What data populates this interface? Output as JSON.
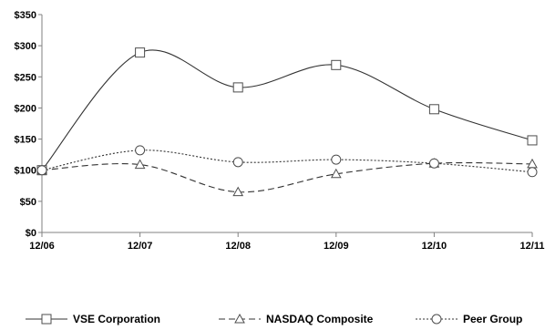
{
  "chart_data": {
    "type": "line",
    "categories": [
      "12/06",
      "12/07",
      "12/08",
      "12/09",
      "12/10",
      "12/11"
    ],
    "ylim": [
      0,
      350
    ],
    "yticks": [
      0,
      50,
      100,
      150,
      200,
      250,
      300,
      350
    ],
    "ytick_labels": [
      "$0",
      "$50",
      "$100",
      "$150",
      "$200",
      "$250",
      "$300",
      "$350"
    ],
    "grid": false,
    "legend_position": "bottom",
    "series": [
      {
        "name": "VSE Corporation",
        "values": [
          100,
          289,
          233,
          269,
          198,
          148
        ],
        "marker": "square",
        "dash": "solid"
      },
      {
        "name": "NASDAQ Composite",
        "values": [
          100,
          109,
          65,
          94,
          111,
          110
        ],
        "marker": "triangle",
        "dash": "dashed"
      },
      {
        "name": "Peer Group",
        "values": [
          100,
          132,
          113,
          117,
          111,
          97
        ],
        "marker": "circle",
        "dash": "dotted"
      }
    ]
  }
}
